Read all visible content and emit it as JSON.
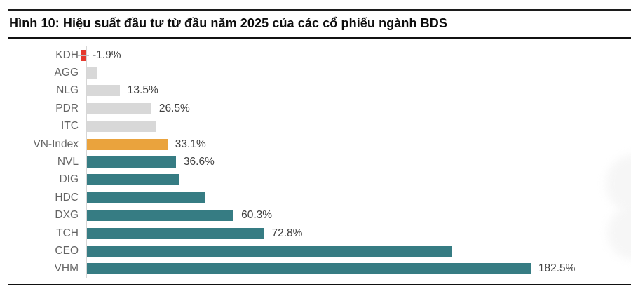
{
  "header": {
    "title": "Hình 10: Hiệu suất đầu tư từ đầu năm 2025 của các cổ phiếu ngành BDS"
  },
  "chart_data": {
    "type": "bar",
    "orientation": "horizontal",
    "title": "Hình 10: Hiệu suất đầu tư từ đầu năm 2025 của các cổ phiếu ngành BDS",
    "xlabel": "",
    "ylabel": "",
    "value_unit": "%",
    "categories": [
      "KDH",
      "AGG",
      "NLG",
      "PDR",
      "ITC",
      "VN-Index",
      "NVL",
      "DIG",
      "HDC",
      "DXG",
      "TCH",
      "CEO",
      "VHM"
    ],
    "values": [
      -1.9,
      4.1,
      13.5,
      26.5,
      28.6,
      33.1,
      36.6,
      38.0,
      48.6,
      60.3,
      72.8,
      150.0,
      182.5
    ],
    "data_labels": [
      "-1.9%",
      "",
      "13.5%",
      "26.5%",
      "",
      "33.1%",
      "36.6%",
      "",
      "",
      "60.3%",
      "72.8%",
      "",
      "182.5%"
    ],
    "bar_colors": [
      "#e5392e",
      "#d8d8d8",
      "#d8d8d8",
      "#d8d8d8",
      "#d8d8d8",
      "#eaa33d",
      "#367c83",
      "#367c83",
      "#367c83",
      "#367c83",
      "#367c83",
      "#367c83",
      "#367c83"
    ],
    "legend": null,
    "grid": false,
    "axis": {
      "zero_line_color": "#d6d6d6",
      "label_color": "#646464",
      "value_label_color": "#404040"
    },
    "color_roles": {
      "negative": "#e5392e",
      "neutral": "#d8d8d8",
      "benchmark_highlight": "#eaa33d",
      "positive_teal": "#367c83"
    }
  }
}
